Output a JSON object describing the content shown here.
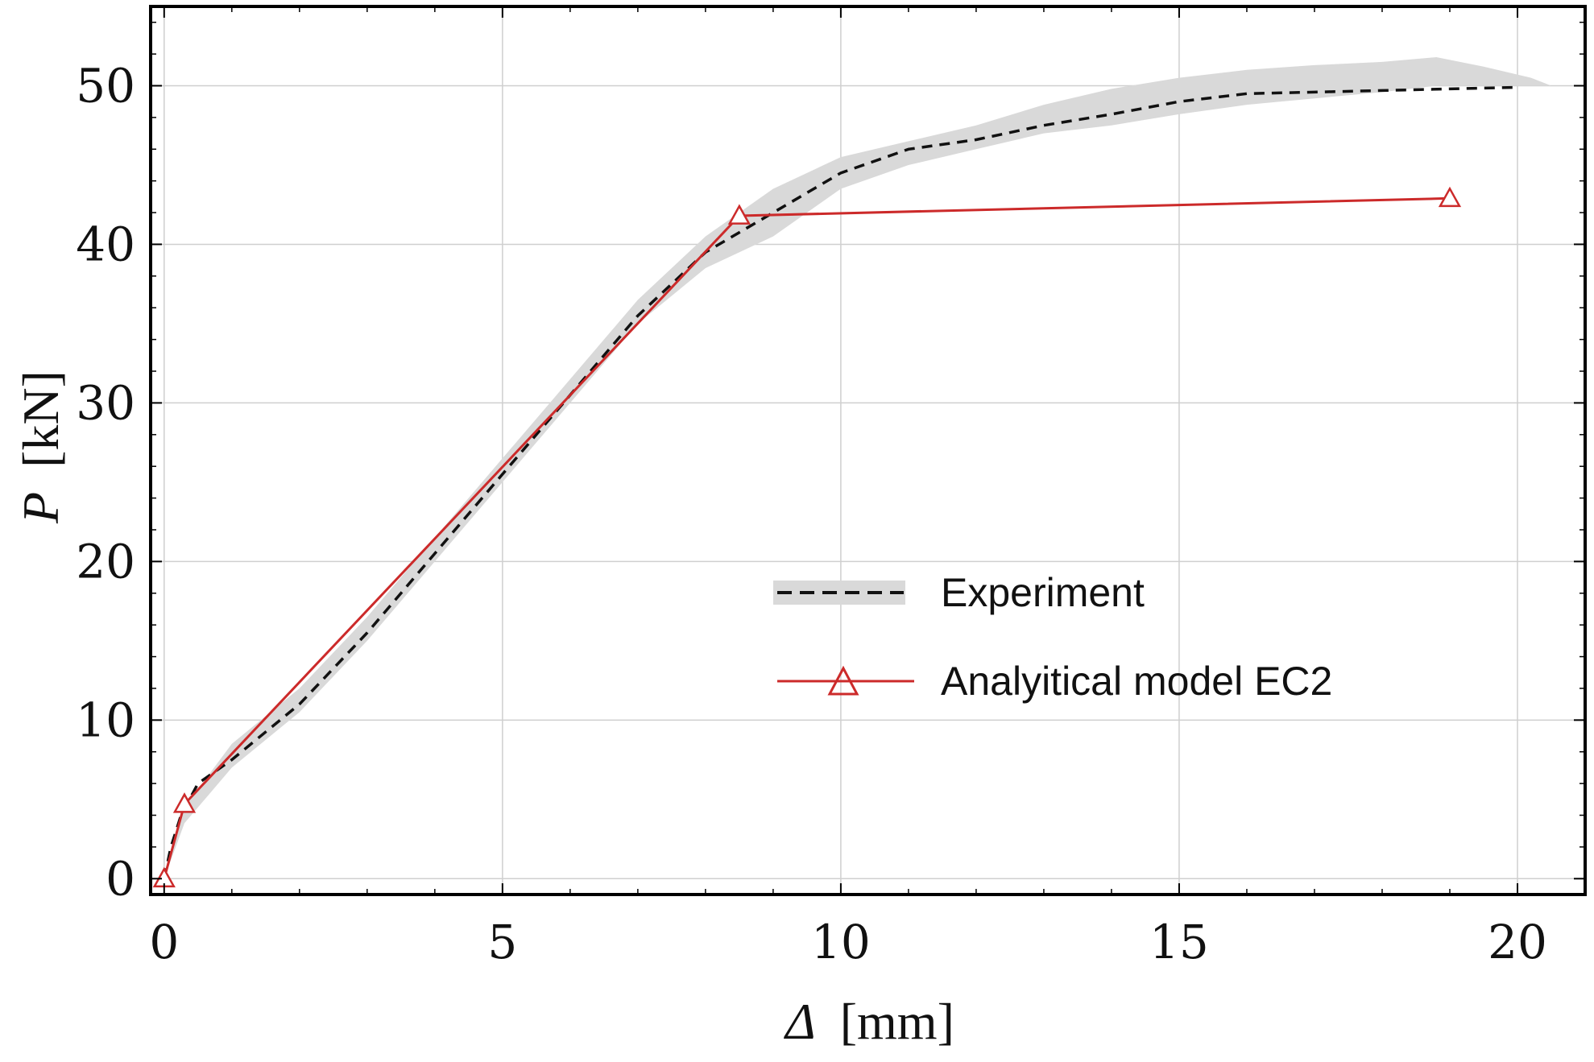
{
  "chart_data": {
    "type": "line",
    "title": "",
    "xlabel": {
      "symbol": "Δ",
      "unit": "[mm]"
    },
    "ylabel": {
      "symbol": "P",
      "unit": "[kN]"
    },
    "xlim": [
      -0.2,
      21
    ],
    "ylim": [
      -1,
      55
    ],
    "xticks": [
      0,
      5,
      10,
      15,
      20
    ],
    "yticks": [
      0,
      10,
      20,
      30,
      40,
      50
    ],
    "xtick_labels": [
      "0",
      "5",
      "10",
      "15",
      "20"
    ],
    "ytick_labels": [
      "0",
      "10",
      "20",
      "30",
      "40",
      "50"
    ],
    "grid": true,
    "legend_position": "center-right",
    "colors": {
      "experiment": "#111111",
      "band": "#d9d9d9",
      "model": "#cc2a2a",
      "grid": "#cfcfcf",
      "frame": "#000000"
    },
    "series": [
      {
        "name": "Experiment",
        "style": "dashed",
        "x": [
          0,
          0.1,
          0.25,
          0.5,
          1,
          2,
          3,
          4,
          5,
          6,
          7,
          8,
          9,
          10,
          11,
          12,
          13,
          14,
          15,
          16,
          17,
          18,
          19,
          20
        ],
        "y": [
          0,
          2,
          4,
          6,
          7.5,
          11,
          15.5,
          20.5,
          25.5,
          30.5,
          35.5,
          39.5,
          42,
          44.5,
          46,
          46.6,
          47.5,
          48.2,
          49,
          49.5,
          49.6,
          49.7,
          49.8,
          49.9
        ],
        "band": {
          "x": [
            0,
            0.3,
            1,
            2,
            3,
            4,
            5,
            6,
            7,
            8,
            9,
            10,
            11,
            12,
            13,
            14,
            15,
            16,
            17,
            18,
            18.8,
            19.5,
            20.2,
            20.5
          ],
          "lower": [
            0,
            3.5,
            7,
            10.5,
            15,
            20,
            25,
            30,
            35,
            38.5,
            40.5,
            43.5,
            45,
            46,
            47,
            47.5,
            48.2,
            48.8,
            49.2,
            49.6,
            50,
            50,
            50,
            50
          ],
          "upper": [
            0,
            4.5,
            8.5,
            12,
            16.5,
            21.5,
            26.5,
            31.5,
            36.5,
            40.5,
            43.5,
            45.5,
            46.5,
            47.5,
            48.8,
            49.8,
            50.5,
            51,
            51.3,
            51.5,
            51.8,
            51.2,
            50.5,
            50
          ]
        }
      },
      {
        "name": "Analyitical model EC2",
        "style": "solid",
        "marker": "triangle",
        "x": [
          0,
          0.3,
          8.5,
          19
        ],
        "y": [
          0,
          4.7,
          41.8,
          42.9
        ]
      }
    ]
  }
}
